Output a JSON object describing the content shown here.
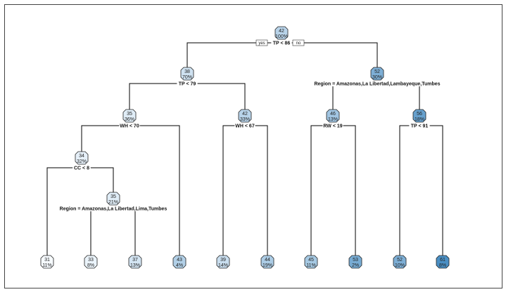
{
  "tree": {
    "yes_label": "yes",
    "no_label": "no",
    "color_low": "#f7fbff",
    "color_high": "#4a8fc4",
    "nodes": [
      {
        "id": "n1",
        "value": "42",
        "percent": "100%",
        "split": "TP < 86",
        "children": [
          "n2",
          "n3"
        ]
      },
      {
        "id": "n2",
        "value": "38",
        "percent": "70%",
        "split": "TP < 79",
        "children": [
          "n4",
          "n5"
        ]
      },
      {
        "id": "n3",
        "value": "52",
        "percent": "30%",
        "split": "Region = Amazonas,La Libertad,Lambayeque,Tumbes",
        "children": [
          "n6",
          "n7"
        ]
      },
      {
        "id": "n4",
        "value": "35",
        "percent": "36%",
        "split": "WH < 70",
        "children": [
          "n8",
          "l4"
        ]
      },
      {
        "id": "n5",
        "value": "42",
        "percent": "33%",
        "split": "WH < 67",
        "children": [
          "l5",
          "l6"
        ]
      },
      {
        "id": "n6",
        "value": "46",
        "percent": "13%",
        "split": "RW < 19",
        "children": [
          "l7",
          "l8"
        ]
      },
      {
        "id": "n7",
        "value": "56",
        "percent": "18%",
        "split": "TP < 91",
        "children": [
          "l9",
          "l10"
        ]
      },
      {
        "id": "n8",
        "value": "34",
        "percent": "32%",
        "split": "CC < 8",
        "children": [
          "l1",
          "n9"
        ]
      },
      {
        "id": "n9",
        "value": "35",
        "percent": "21%",
        "split": "Region = Amazonas,La Libertad,Lima,Tumbes",
        "children": [
          "l2",
          "l3"
        ]
      },
      {
        "id": "l1",
        "value": "31",
        "percent": "11%"
      },
      {
        "id": "l2",
        "value": "33",
        "percent": "8%"
      },
      {
        "id": "l3",
        "value": "37",
        "percent": "13%"
      },
      {
        "id": "l4",
        "value": "43",
        "percent": "4%"
      },
      {
        "id": "l5",
        "value": "39",
        "percent": "14%"
      },
      {
        "id": "l6",
        "value": "44",
        "percent": "19%"
      },
      {
        "id": "l7",
        "value": "45",
        "percent": "11%"
      },
      {
        "id": "l8",
        "value": "53",
        "percent": "2%"
      },
      {
        "id": "l9",
        "value": "52",
        "percent": "10%"
      },
      {
        "id": "l10",
        "value": "61",
        "percent": "8%"
      }
    ]
  }
}
